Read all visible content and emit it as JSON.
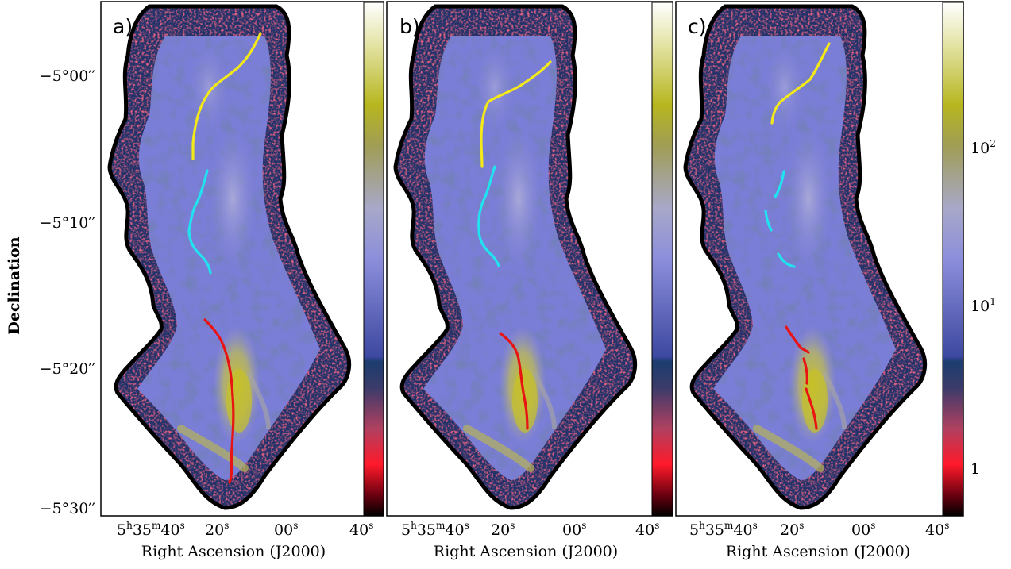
{
  "figure": {
    "y_axis_label": "Declination",
    "x_axis_label": "Right Ascension (J2000)",
    "dec_ticks": [
      "−5°00′′",
      "−5°10′′",
      "−5°20′′",
      "−5°30′′"
    ],
    "ra_ticks": {
      "first_main": "5",
      "first_h": "h",
      "first_mid": "35",
      "first_m": "m",
      "first_sec": "40",
      "s": "s",
      "t2": "20",
      "t3": "00",
      "t4": "40"
    },
    "colorbar_ticks": {
      "t100_base": "10",
      "t100_exp": "2",
      "t10_base": "10",
      "t10_exp": "1",
      "t1": "1"
    },
    "panels": [
      {
        "label": "a)"
      },
      {
        "label": "b)"
      },
      {
        "label": "c)"
      }
    ],
    "colors": {
      "filament_north": "#f2e81a",
      "filament_middle": "#21e3f0",
      "filament_south": "#e81313",
      "map_low": "#c8223a",
      "map_mid": "#7d7fd8",
      "map_high": "#b9b93a"
    }
  }
}
